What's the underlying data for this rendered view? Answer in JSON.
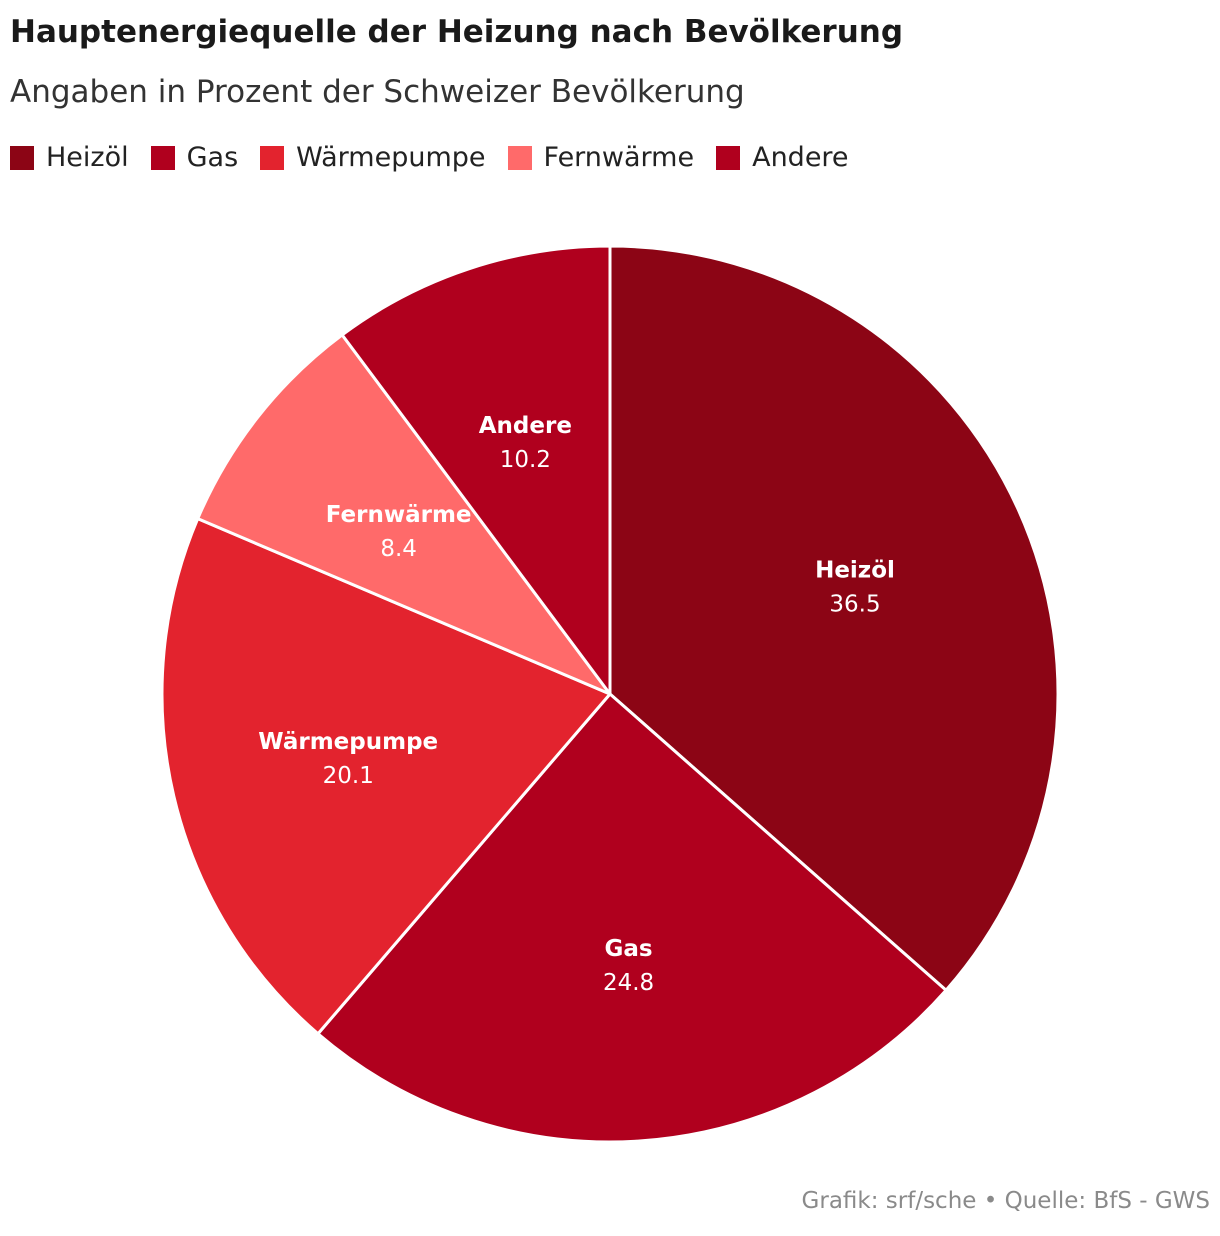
{
  "header": {
    "title": "Hauptenergiequelle der Heizung nach Bevölkerung",
    "subtitle": "Angaben in Prozent der Schweizer Bevölkerung"
  },
  "footer": {
    "source": "Grafik: srf/sche • Quelle: BfS - GWS"
  },
  "chart_data": {
    "type": "pie",
    "title": "Hauptenergiequelle der Heizung nach Bevölkerung",
    "subtitle": "Angaben in Prozent der Schweizer Bevölkerung",
    "categories": [
      "Heizöl",
      "Gas",
      "Wärmepumpe",
      "Fernwärme",
      "Andere"
    ],
    "values": [
      36.5,
      24.8,
      20.1,
      8.4,
      10.2
    ],
    "value_labels": [
      "36.5",
      "24.8",
      "20.1",
      "8.4",
      "10.2"
    ],
    "colors": [
      "#8c0515",
      "#b0001e",
      "#e3232e",
      "#ff6a6a",
      "#b0001e"
    ],
    "legend_position": "top-left",
    "start_angle": "12 o'clock, clockwise"
  }
}
